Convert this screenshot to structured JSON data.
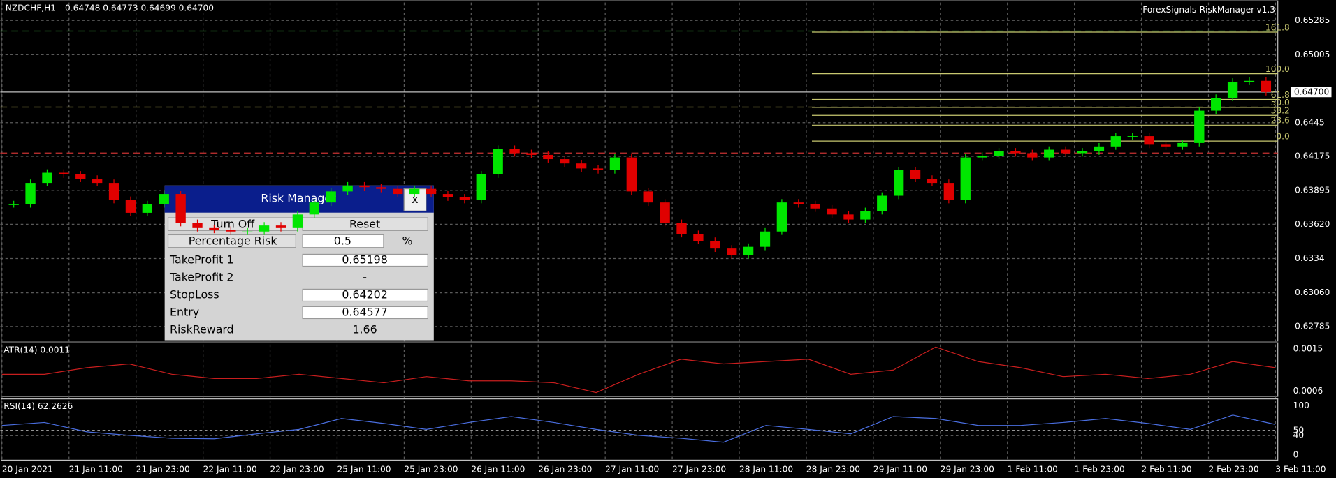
{
  "header": {
    "symbol": "NZDCHF,H1",
    "ohlc": "0.64748 0.64773 0.64699 0.64700",
    "indicator": "ForexSignals-RiskManager-v1.3"
  },
  "chart_data": {
    "type": "candlestick",
    "closes": [
      0.63784,
      0.63958,
      0.64041,
      0.64027,
      0.63992,
      0.63958,
      0.63819,
      0.63714,
      0.63784,
      0.63867,
      0.63631,
      0.63589,
      0.63575,
      0.63561,
      0.63561,
      0.6361,
      0.63589,
      0.637,
      0.63798,
      0.63888,
      0.63937,
      0.63923,
      0.63909,
      0.63867,
      0.63909,
      0.63867,
      0.63839,
      0.63819,
      0.64027,
      0.64236,
      0.64201,
      0.64187,
      0.64152,
      0.64117,
      0.64076,
      0.64062,
      0.64166,
      0.63888,
      0.63798,
      0.63631,
      0.63541,
      0.63485,
      0.63422,
      0.63367,
      0.63436,
      0.63561,
      0.63798,
      0.63784,
      0.63749,
      0.637,
      0.63659,
      0.63728,
      0.63853,
      0.64062,
      0.63992,
      0.63958,
      0.63819,
      0.64166,
      0.6418,
      0.64215,
      0.64201,
      0.64166,
      0.64229,
      0.64201,
      0.64215,
      0.64256,
      0.6434,
      0.6434,
      0.6427,
      0.64256,
      0.64284,
      0.64548,
      0.64653,
      0.64785,
      0.64792,
      0.647
    ],
    "ylim": [
      0.62673,
      0.65431
    ],
    "yticks": [
      0.65285,
      0.65005,
      0.6445,
      0.64175,
      0.63895,
      {
        "value": 0.6362,
        "label": "0.63620"
      },
      0.6334,
      {
        "value": 0.6306,
        "label": "0.63060"
      },
      0.62785
    ],
    "current_price": {
      "value": 0.647,
      "label": "0.64700"
    },
    "categories": [
      "20 Jan 2021",
      "21 Jan 11:00",
      "21 Jan 23:00",
      "22 Jan 11:00",
      "22 Jan 23:00",
      "25 Jan 11:00",
      "25 Jan 23:00",
      "26 Jan 11:00",
      "26 Jan 23:00",
      "27 Jan 11:00",
      "27 Jan 23:00",
      "28 Jan 11:00",
      "28 Jan 23:00",
      "29 Jan 11:00",
      "29 Jan 23:00",
      "1 Feb 11:00",
      "1 Feb 23:00",
      "2 Feb 11:00",
      "2 Feb 23:00",
      "3 Feb 11:00"
    ],
    "grid": true,
    "up_color": "#00e600",
    "down_color": "#e00000"
  },
  "fibonacci": {
    "range": [
      0.643,
      0.6485
    ],
    "color": "#c8c870",
    "levels": [
      161.8,
      {
        "value": 100,
        "label": "100.0"
      },
      61.8,
      {
        "value": 50,
        "label": "50.0"
      },
      38.2,
      23.6,
      {
        "value": 0,
        "label": "0.0"
      }
    ]
  },
  "atr": {
    "title": "ATR(14) 0.0011",
    "color": "#c81e1e",
    "values": [
      0.00096,
      0.00096,
      0.0011,
      0.00118,
      0.00096,
      0.00087,
      0.00087,
      0.00096,
      0.00087,
      0.00078,
      0.00091,
      0.00082,
      0.00082,
      0.00078,
      0.00057,
      0.00096,
      0.00128,
      0.00118,
      0.00123,
      0.00128,
      0.00096,
      0.00105,
      0.00154,
      0.00123,
      0.0011,
      0.00091,
      0.00096,
      0.00087,
      0.00096,
      0.00123,
      0.0011
    ],
    "ylim": [
      0.00049,
      0.00163
    ],
    "yticks": [
      0.0015,
      0.0006
    ]
  },
  "rsi": {
    "title": "RSI(14) 62.2626",
    "color": "#4a6ee0",
    "values": [
      60,
      66,
      47,
      40,
      34,
      33,
      43,
      52,
      74,
      64,
      52,
      66,
      78,
      66,
      52,
      40,
      34,
      26,
      60,
      52,
      43,
      78,
      74,
      60,
      60,
      66,
      74,
      64,
      52,
      81,
      62
    ],
    "ylim": [
      -10.3,
      113.8
    ],
    "yticks": [
      100,
      50,
      40,
      0
    ]
  },
  "risk_manager": {
    "title": "Risk Manager",
    "close": "x",
    "turn_off": "Turn Off",
    "reset": "Reset",
    "percentage_label": "Percentage Risk",
    "percentage": 0.5,
    "percent_sign": "%",
    "rows": [
      {
        "label": "TakeProfit 1",
        "value": 0.65198
      },
      {
        "label": "TakeProfit 2",
        "value": "-"
      },
      {
        "label": "StopLoss",
        "value": 0.64202
      },
      {
        "label": "Entry",
        "value": 0.64577
      },
      {
        "label": "RiskReward",
        "value": 1.66
      }
    ]
  }
}
